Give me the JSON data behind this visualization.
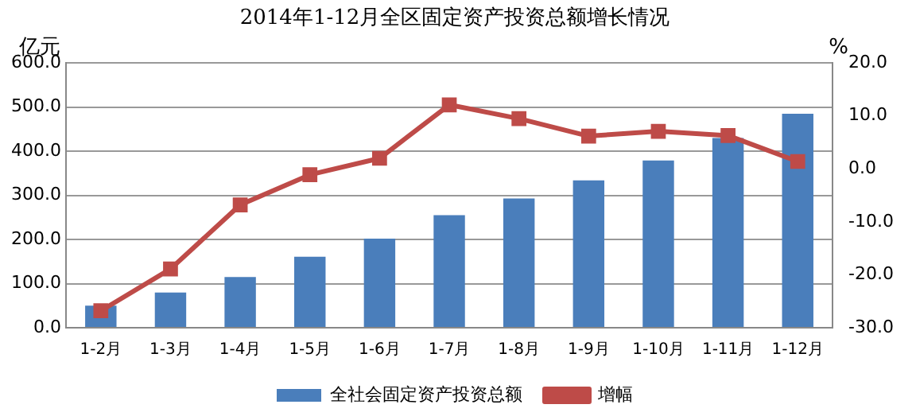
{
  "chart_data": {
    "type": "bar",
    "title": "2014年1-12月全区固定资产投资总额增长情况",
    "ylabel": "亿元",
    "y2label": "%",
    "categories": [
      "1-2月",
      "1-3月",
      "1-4月",
      "1-5月",
      "1-6月",
      "1-7月",
      "1-8月",
      "1-9月",
      "1-10月",
      "1-11月",
      "1-12月"
    ],
    "series": [
      {
        "name": "全社会固定资产投资总额",
        "color": "#4a7ebb",
        "values": [
          50,
          80,
          115,
          161,
          202,
          255,
          293,
          334,
          379,
          430,
          485
        ]
      },
      {
        "name": "增幅",
        "type": "line",
        "axis": "y2",
        "color": "#be4b48",
        "marker": "square",
        "values": [
          -26.8,
          -18.9,
          -6.8,
          -1.1,
          2.0,
          12.1,
          9.5,
          6.2,
          7.1,
          6.3,
          1.4
        ]
      }
    ],
    "ylim": [
      0,
      600
    ],
    "yticks": [
      {
        "value": 0,
        "label": "0.0"
      },
      {
        "value": 100,
        "label": "100.0"
      },
      {
        "value": 200,
        "label": "200.0"
      },
      {
        "value": 300,
        "label": "300.0"
      },
      {
        "value": 400,
        "label": "400.0"
      },
      {
        "value": 500,
        "label": "500.0"
      },
      {
        "value": 600,
        "label": "600.0"
      }
    ],
    "y2lim": [
      -30,
      20
    ],
    "y2ticks": [
      {
        "value": -30,
        "label": "-30.0"
      },
      {
        "value": -20,
        "label": "-20.0"
      },
      {
        "value": -10,
        "label": "-10.0"
      },
      {
        "value": 0,
        "label": "0.0"
      },
      {
        "value": 10,
        "label": "10.0"
      },
      {
        "value": 20,
        "label": "20.0"
      }
    ],
    "grid": "y",
    "legend": "bottom"
  }
}
